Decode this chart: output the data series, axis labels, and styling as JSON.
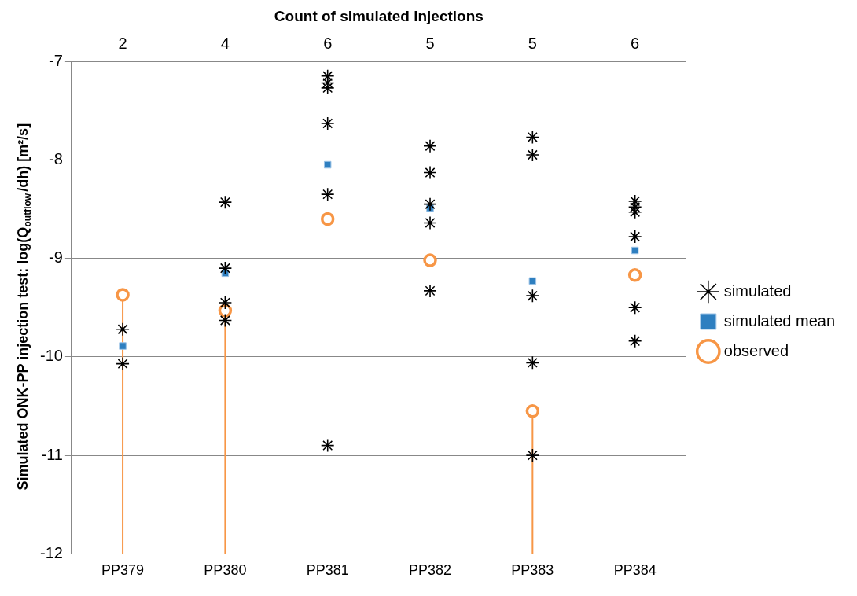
{
  "chart_data": {
    "type": "scatter",
    "x2label": "Count of simulated injections",
    "ylabel": "Simulated ONK-PP injection test: log(Q$_{outflow}$/dh) [m²/s]",
    "categories": [
      "PP379",
      "PP380",
      "PP381",
      "PP382",
      "PP383",
      "PP384"
    ],
    "annotations": [
      "2",
      "4",
      "6",
      "5",
      "5",
      "6"
    ],
    "ylim": [
      -12,
      -7
    ],
    "yticks": [
      -12,
      -11,
      -10,
      -9,
      -8,
      -7
    ],
    "grid": "y",
    "legend": "right",
    "series": [
      {
        "name": "simulated",
        "color": "#000000",
        "marker": "cross",
        "x": [
          "PP379",
          "PP379",
          "PP380",
          "PP380",
          "PP380",
          "PP380",
          "PP381",
          "PP381",
          "PP381",
          "PP381",
          "PP381",
          "PP381",
          "PP382",
          "PP382",
          "PP382",
          "PP382",
          "PP382",
          "PP383",
          "PP383",
          "PP383",
          "PP383",
          "PP383",
          "PP384",
          "PP384",
          "PP384",
          "PP384",
          "PP384",
          "PP384"
        ],
        "values": [
          -9.72,
          -10.07,
          -8.43,
          -9.1,
          -9.45,
          -9.63,
          -7.15,
          -7.22,
          -7.27,
          -7.63,
          -8.35,
          -10.9,
          -7.86,
          -8.13,
          -8.45,
          -8.64,
          -9.33,
          -7.77,
          -7.95,
          -9.38,
          -10.06,
          -11.0,
          -8.42,
          -8.48,
          -8.53,
          -8.78,
          -9.5,
          -9.84
        ]
      },
      {
        "name": "simulated mean",
        "color": "#2e7fc0",
        "marker": "square",
        "values": [
          -9.89,
          -9.15,
          -8.05,
          -8.49,
          -9.23,
          -8.92
        ]
      },
      {
        "name": "observed",
        "color": "#f79646",
        "marker": "circle",
        "values": [
          -9.37,
          -9.53,
          -8.6,
          -9.02,
          -10.55,
          -9.17
        ],
        "errors": [
          [
            -12,
            -9.37
          ],
          [
            -12,
            -9.53
          ],
          null,
          null,
          [
            -12,
            -10.55
          ],
          null
        ]
      }
    ]
  }
}
